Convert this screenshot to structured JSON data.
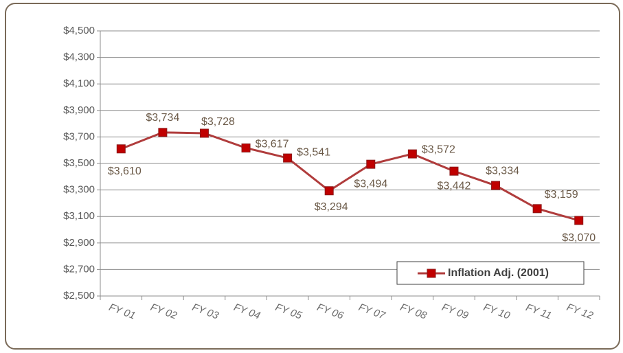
{
  "chart_data": {
    "type": "line",
    "categories": [
      "FY 01",
      "FY 02",
      "FY 03",
      "FY 04",
      "FY 05",
      "FY 06",
      "FY 07",
      "FY 08",
      "FY 09",
      "FY 10",
      "FY 11",
      "FY 12"
    ],
    "series": [
      {
        "name": "Inflation Adj. (2001)",
        "color": "#b03c3c",
        "marker_color": "#c00000",
        "values": [
          3610,
          3734,
          3728,
          3617,
          3541,
          3294,
          3494,
          3572,
          3442,
          3334,
          3159,
          3070
        ],
        "value_labels": [
          "$3,610",
          "$3,734",
          "$3,728",
          "$3,617",
          "$3,541",
          "$3,294",
          "$3,494",
          "$3,572",
          "$3,442",
          "$3,334",
          "$3,159",
          "$3,070"
        ]
      }
    ],
    "ylim": [
      2500,
      4500
    ],
    "yticks": [
      {
        "value": 2500,
        "label": "$2,500"
      },
      {
        "value": 2700,
        "label": "$2,700"
      },
      {
        "value": 2900,
        "label": "$2,900"
      },
      {
        "value": 3100,
        "label": "$3,100"
      },
      {
        "value": 3300,
        "label": "$3,300"
      },
      {
        "value": 3500,
        "label": "$3,500"
      },
      {
        "value": 3700,
        "label": "$3,700"
      },
      {
        "value": 3900,
        "label": "$3,900"
      },
      {
        "value": 4100,
        "label": "$4,100"
      },
      {
        "value": 4300,
        "label": "$4,300"
      },
      {
        "value": 4500,
        "label": "$4,500"
      }
    ],
    "grid": true,
    "legend": "bottom-right"
  }
}
